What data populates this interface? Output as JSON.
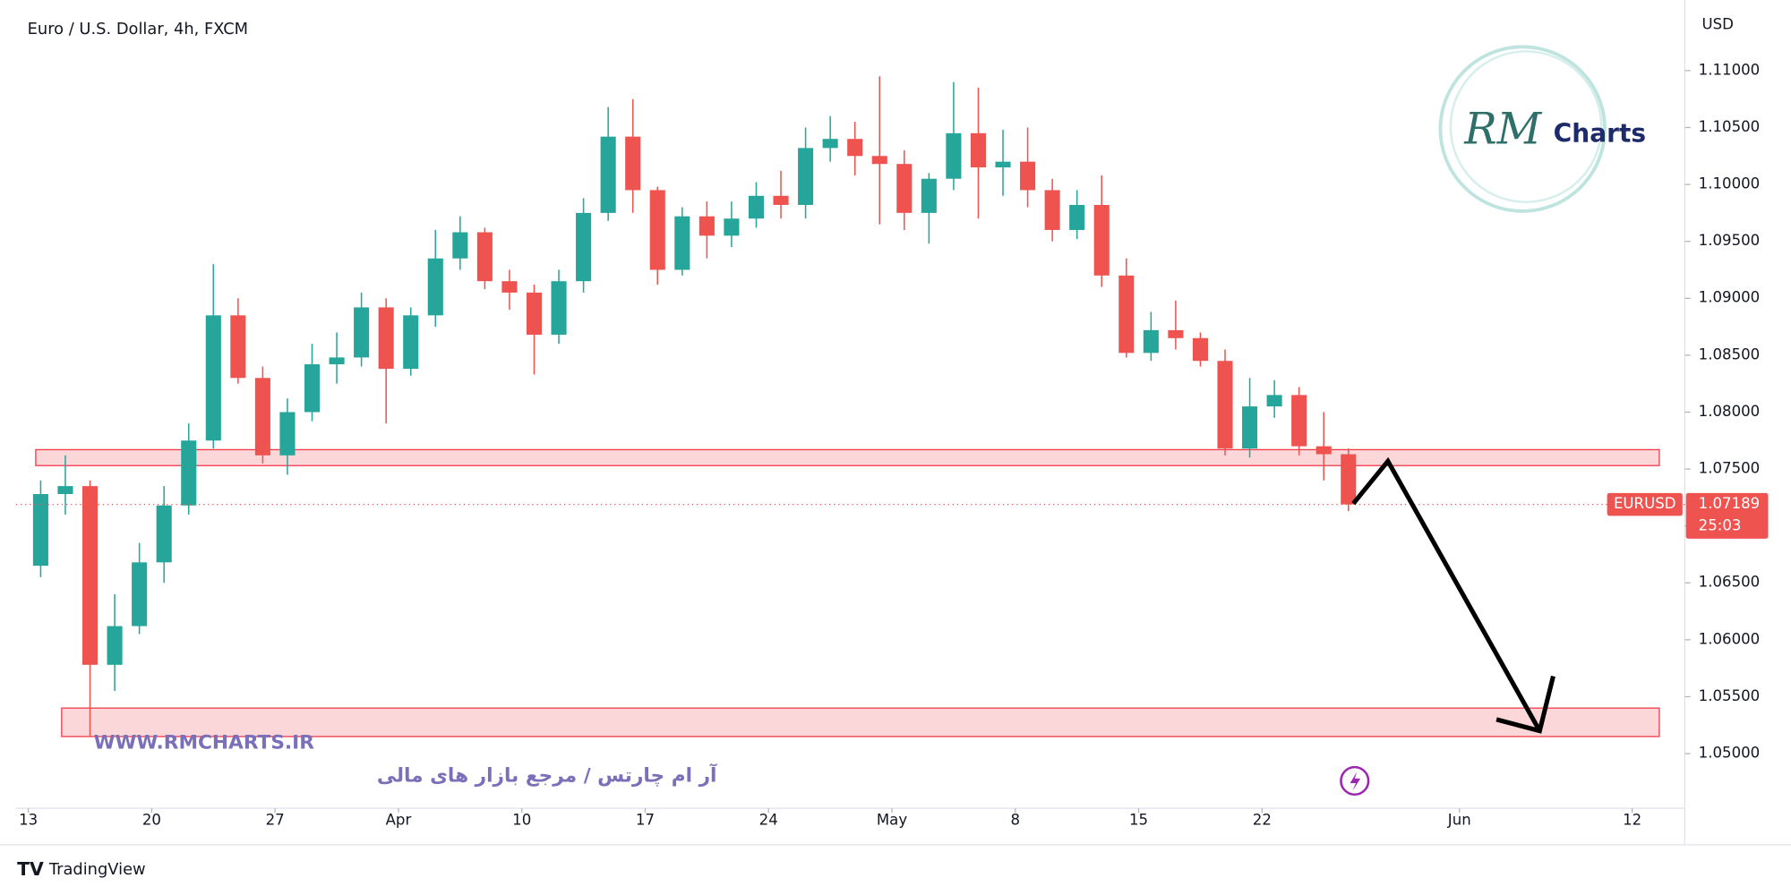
{
  "chart_data": {
    "type": "candlestick",
    "title": "Euro / U.S. Dollar, 4h, FXCM",
    "y_label": "USD",
    "symbol": "EURUSD",
    "last_price": 1.07189,
    "countdown": "25:03",
    "up_color": "#26a69a",
    "down_color": "#ef5350",
    "zone_color": "#f23645",
    "arrow_color": "#000000",
    "xlim": [
      -0.5,
      66.9
    ],
    "ylim": [
      1.0452,
      1.1152
    ],
    "xticks": [
      {
        "value": 0,
        "label": "13"
      },
      {
        "value": 5,
        "label": "20"
      },
      {
        "value": 10,
        "label": "27"
      },
      {
        "value": 15,
        "label": "Apr"
      },
      {
        "value": 20,
        "label": "10"
      },
      {
        "value": 25,
        "label": "17"
      },
      {
        "value": 30,
        "label": "24"
      },
      {
        "value": 35,
        "label": "May"
      },
      {
        "value": 40,
        "label": "8"
      },
      {
        "value": 45,
        "label": "15"
      },
      {
        "value": 50,
        "label": "22"
      },
      {
        "value": 58,
        "label": "Jun"
      },
      {
        "value": 65,
        "label": "12"
      }
    ],
    "yticks": [
      {
        "value": 1.05,
        "label": "1.05000"
      },
      {
        "value": 1.055,
        "label": "1.05500"
      },
      {
        "value": 1.06,
        "label": "1.06000"
      },
      {
        "value": 1.065,
        "label": "1.06500"
      },
      {
        "value": 1.07,
        "label": "1.07000"
      },
      {
        "value": 1.075,
        "label": "1.07500"
      },
      {
        "value": 1.08,
        "label": "1.08000"
      },
      {
        "value": 1.085,
        "label": "1.08500"
      },
      {
        "value": 1.09,
        "label": "1.09000"
      },
      {
        "value": 1.095,
        "label": "1.09500"
      },
      {
        "value": 1.1,
        "label": "1.10000"
      },
      {
        "value": 1.105,
        "label": "1.10500"
      },
      {
        "value": 1.11,
        "label": "1.11000"
      }
    ],
    "x": [
      0.5,
      1.5,
      2.5,
      3.5,
      4.5,
      5.5,
      6.5,
      7.5,
      8.5,
      9.5,
      10.5,
      11.5,
      12.5,
      13.5,
      14.5,
      15.5,
      16.5,
      17.5,
      18.5,
      19.5,
      20.5,
      21.5,
      22.5,
      23.5,
      24.5,
      25.5,
      26.5,
      27.5,
      28.5,
      29.5,
      30.5,
      31.5,
      32.5,
      33.5,
      34.5,
      35.5,
      36.5,
      37.5,
      38.5,
      39.5,
      40.5,
      41.5,
      42.5,
      43.5,
      44.5,
      45.5,
      46.5,
      47.5,
      48.5,
      49.5,
      50.5,
      51.5,
      52.5,
      53.5
    ],
    "open": [
      1.0665,
      1.0728,
      1.0735,
      1.0578,
      1.0612,
      1.0668,
      1.0718,
      1.0775,
      1.0885,
      1.083,
      1.0762,
      1.08,
      1.0842,
      1.0848,
      1.0892,
      1.0838,
      1.0885,
      1.0935,
      1.0958,
      1.0915,
      1.0905,
      1.0868,
      1.0915,
      1.0975,
      1.1042,
      1.0995,
      1.0925,
      1.0972,
      1.0955,
      1.097,
      1.099,
      1.0982,
      1.1032,
      1.104,
      1.1025,
      1.1018,
      1.0975,
      1.1005,
      1.1045,
      1.1015,
      1.102,
      1.0995,
      1.096,
      1.0982,
      1.092,
      1.0852,
      1.0872,
      1.0865,
      1.0845,
      1.0768,
      1.0805,
      1.0815,
      1.077,
      1.0763
    ],
    "high": [
      1.074,
      1.0762,
      1.074,
      1.064,
      1.0685,
      1.0735,
      1.079,
      1.093,
      1.09,
      1.084,
      1.0812,
      1.086,
      1.087,
      1.0905,
      1.09,
      1.0892,
      1.096,
      1.0972,
      1.0962,
      1.0925,
      1.0912,
      1.0925,
      1.0988,
      1.1068,
      1.1075,
      1.0998,
      1.098,
      1.0985,
      1.0985,
      1.1002,
      1.1012,
      1.105,
      1.106,
      1.1055,
      1.1095,
      1.103,
      1.101,
      1.109,
      1.1085,
      1.1048,
      1.105,
      1.1005,
      1.0995,
      1.1008,
      1.0935,
      1.0888,
      1.0898,
      1.087,
      1.0855,
      1.083,
      1.0828,
      1.0822,
      1.08,
      1.0768
    ],
    "low": [
      1.0655,
      1.071,
      1.0515,
      1.0555,
      1.0605,
      1.065,
      1.071,
      1.0768,
      1.0825,
      1.0755,
      1.0745,
      1.0792,
      1.0825,
      1.084,
      1.079,
      1.0832,
      1.0875,
      1.0925,
      1.0908,
      1.089,
      1.0833,
      1.086,
      1.0905,
      1.0968,
      1.0975,
      1.0912,
      1.092,
      1.0935,
      1.0945,
      1.0962,
      1.097,
      1.097,
      1.102,
      1.1008,
      1.0965,
      1.096,
      1.0948,
      1.0995,
      1.097,
      1.099,
      1.098,
      1.095,
      1.0952,
      1.091,
      1.0848,
      1.0845,
      1.0855,
      1.084,
      1.0762,
      1.076,
      1.0795,
      1.0762,
      1.074,
      1.0713
    ],
    "close": [
      1.0728,
      1.0735,
      1.0578,
      1.0612,
      1.0668,
      1.0718,
      1.0775,
      1.0885,
      1.083,
      1.0762,
      1.08,
      1.0842,
      1.0848,
      1.0892,
      1.0838,
      1.0885,
      1.0935,
      1.0958,
      1.0915,
      1.0905,
      1.0868,
      1.0915,
      1.0975,
      1.1042,
      1.0995,
      1.0925,
      1.0972,
      1.0955,
      1.097,
      1.099,
      1.0982,
      1.1032,
      1.104,
      1.1025,
      1.1018,
      1.0975,
      1.1005,
      1.1045,
      1.1015,
      1.102,
      1.0995,
      1.096,
      1.0982,
      1.092,
      1.0852,
      1.0872,
      1.0865,
      1.0845,
      1.0768,
      1.0805,
      1.0815,
      1.077,
      1.0763,
      1.07189
    ],
    "zones": [
      {
        "low": 1.0753,
        "high": 1.0767,
        "x_start": 0.3,
        "x_end": 66.1
      },
      {
        "low": 1.0515,
        "high": 1.054,
        "x_start": 1.35,
        "x_end": 66.1
      }
    ],
    "arrow": {
      "x": [
        53.7,
        55.1,
        61.25
      ],
      "y": [
        1.07197,
        1.07569,
        1.052
      ],
      "head_x": [
        59.5,
        61.25,
        61.8
      ],
      "head_y": [
        1.053,
        1.052,
        1.0568
      ]
    }
  },
  "branding": {
    "logo_mark": "RM",
    "logo_text": "Charts",
    "website": "WWW.RMCHARTS.IR",
    "tagline": "آر ام چارتس / مرجع بازار های مالی",
    "footer": "TradingView"
  }
}
